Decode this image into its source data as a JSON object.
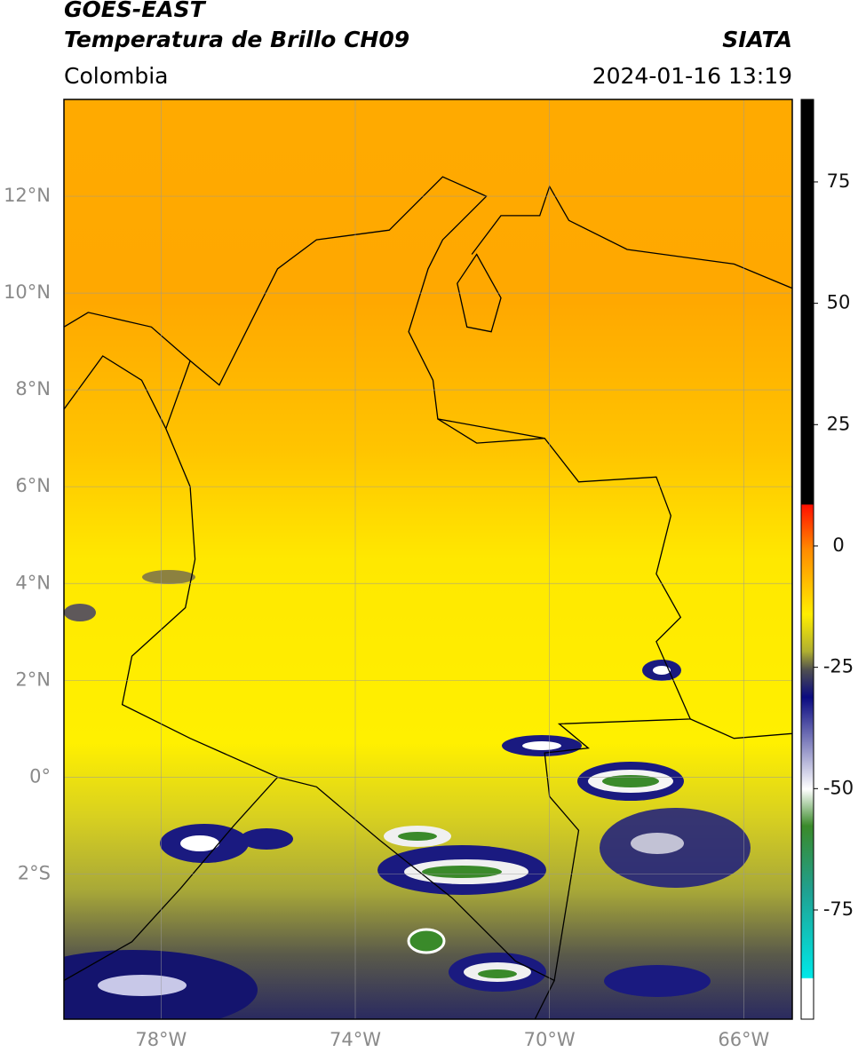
{
  "header": {
    "satellite": "GOES-EAST",
    "product": "Temperatura de Brillo CH09",
    "region": "Colombia",
    "source": "SIATA",
    "datetime": "2024-01-16 13:19"
  },
  "map": {
    "xlim": [
      -80,
      -65
    ],
    "ylim": [
      -5,
      14
    ],
    "xticks": [
      {
        "value": -78,
        "label": "78°W"
      },
      {
        "value": -74,
        "label": "74°W"
      },
      {
        "value": -70,
        "label": "70°W"
      },
      {
        "value": -66,
        "label": "66°W"
      }
    ],
    "yticks": [
      {
        "value": 12,
        "label": "12°N"
      },
      {
        "value": 10,
        "label": "10°N"
      },
      {
        "value": 8,
        "label": "8°N"
      },
      {
        "value": 6,
        "label": "6°N"
      },
      {
        "value": 4,
        "label": "4°N"
      },
      {
        "value": 2,
        "label": "2°N"
      },
      {
        "value": 0,
        "label": "0°"
      },
      {
        "value": -2,
        "label": "2°S"
      }
    ],
    "grid": true
  },
  "colorbar": {
    "lim": [
      -97.5,
      92
    ],
    "ticks": [
      75,
      50,
      25,
      0,
      -25,
      -50,
      -75
    ]
  }
}
